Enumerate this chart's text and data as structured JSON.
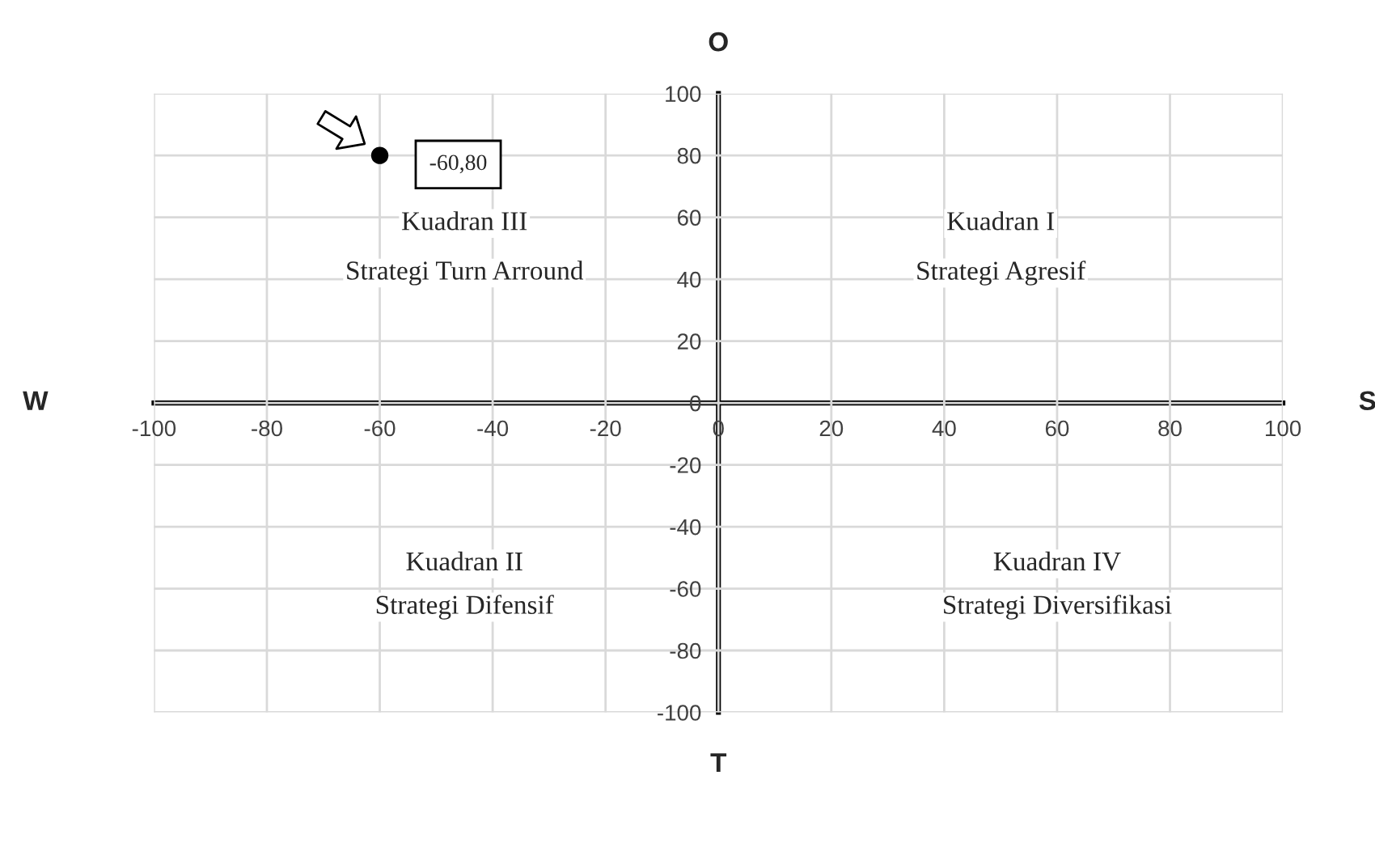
{
  "chart_data": {
    "type": "scatter",
    "x": [
      -60
    ],
    "series": [
      {
        "color": "#000000",
        "values": [
          80
        ]
      }
    ],
    "marker": "circle",
    "xlim": [
      -100,
      100
    ],
    "ylim": [
      -100,
      100
    ],
    "xticks": [
      -100,
      -80,
      -60,
      -40,
      -20,
      0,
      20,
      40,
      60,
      80,
      100
    ],
    "yticks": [
      -100,
      -80,
      -60,
      -40,
      -20,
      0,
      20,
      40,
      60,
      80,
      100
    ],
    "grid": true,
    "annotations": [
      {
        "text": "-60,80",
        "x": -60,
        "y": 80
      },
      "Kuadran III",
      "Strategi Turn Arround",
      "Kuadran I",
      "Strategi Agresif",
      "Kuadran II",
      "Strategi Difensif",
      "Kuadran IV",
      "Strategi Diversifikasi",
      "W",
      "S",
      "O",
      "T"
    ]
  }
}
